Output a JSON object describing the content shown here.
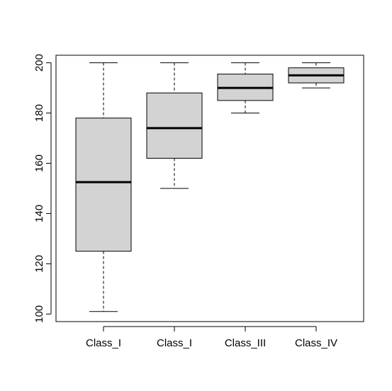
{
  "chart_data": {
    "type": "boxplot",
    "title": "",
    "xlabel": "",
    "ylabel": "",
    "categories": [
      "Class_I",
      "Class_I",
      "Class_III",
      "Class_IV"
    ],
    "ylim": [
      97,
      203
    ],
    "yticks": [
      100,
      120,
      140,
      160,
      180,
      200
    ],
    "ytick_labels": [
      "100",
      "120",
      "140",
      "160",
      "180",
      "200"
    ],
    "boxes": [
      {
        "label": "Class_I",
        "whisker_low": 101,
        "q1": 125,
        "median": 152.5,
        "q3": 178,
        "whisker_high": 200
      },
      {
        "label": "Class_I",
        "whisker_low": 150,
        "q1": 162,
        "median": 174,
        "q3": 188,
        "whisker_high": 200
      },
      {
        "label": "Class_III",
        "whisker_low": 180,
        "q1": 185,
        "median": 190,
        "q3": 195.5,
        "whisker_high": 200
      },
      {
        "label": "Class_IV",
        "whisker_low": 190,
        "q1": 192,
        "median": 195,
        "q3": 198,
        "whisker_high": 200
      }
    ],
    "box_fill": "#d3d3d3",
    "line_color": "#000000",
    "grid": false,
    "legend": "none"
  }
}
